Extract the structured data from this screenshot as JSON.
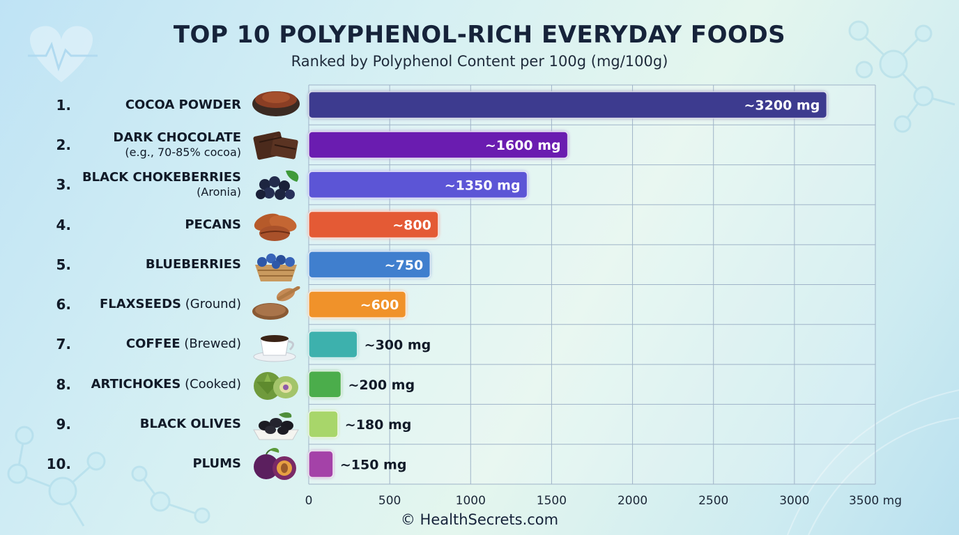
{
  "title": "TOP 10 POLYPHENOL-RICH EVERYDAY FOODS",
  "subtitle": "Ranked by Polyphenol Content per 100g (mg/100g)",
  "footer": "© HealthSecrets.com",
  "rows": [
    {
      "rank": "1.",
      "name": "COCOA POWDER",
      "qualifier": "",
      "sub": "",
      "icon": "cocoa-powder-bowl-icon"
    },
    {
      "rank": "2.",
      "name": "DARK CHOCOLATE",
      "qualifier": "",
      "sub": "(e.g., 70-85% cocoa)",
      "icon": "chocolate-bar-icon"
    },
    {
      "rank": "3.",
      "name": "BLACK CHOKEBERRIES",
      "qualifier": "",
      "sub": "(Aronia)",
      "icon": "chokeberries-icon"
    },
    {
      "rank": "4.",
      "name": "PECANS",
      "qualifier": "",
      "sub": "",
      "icon": "pecans-icon"
    },
    {
      "rank": "5.",
      "name": "BLUEBERRIES",
      "qualifier": "",
      "sub": "",
      "icon": "blueberry-basket-icon"
    },
    {
      "rank": "6.",
      "name": "FLAXSEEDS",
      "qualifier": "(Ground)",
      "sub": "",
      "icon": "flaxseed-spoon-icon"
    },
    {
      "rank": "7.",
      "name": "COFFEE",
      "qualifier": "(Brewed)",
      "sub": "",
      "icon": "coffee-cup-icon"
    },
    {
      "rank": "8.",
      "name": "ARTICHOKES",
      "qualifier": "(Cooked)",
      "sub": "",
      "icon": "artichoke-icon"
    },
    {
      "rank": "9.",
      "name": "BLACK OLIVES",
      "qualifier": "",
      "sub": "",
      "icon": "olive-dish-icon"
    },
    {
      "rank": "10.",
      "name": "PLUMS",
      "qualifier": "",
      "sub": "",
      "icon": "plums-icon"
    }
  ],
  "chart_data": {
    "type": "bar",
    "orientation": "horizontal",
    "categories": [
      "COCOA POWDER",
      "DARK CHOCOLATE",
      "BLACK CHOKEBERRIES",
      "PECANS",
      "BLUEBERRIES",
      "FLAXSEEDS",
      "COFFEE",
      "ARTICHOKES",
      "BLACK OLIVES",
      "PLUMS"
    ],
    "values": [
      3200,
      1600,
      1350,
      800,
      750,
      600,
      300,
      200,
      180,
      150
    ],
    "data_labels": [
      "~3200 mg",
      "~1600 mg",
      "~1350 mg",
      "~800",
      "~750",
      "~600",
      "~300 mg",
      "~200 mg",
      "~180 mg",
      "~150 mg"
    ],
    "colors": [
      "#3d3a8f",
      "#6a1fb0",
      "#5b55d6",
      "#e45a36",
      "#3f7fce",
      "#f0922a",
      "#3cb1ad",
      "#4cad4c",
      "#a8d66a",
      "#a442a8"
    ],
    "x_ticks": [
      0,
      500,
      1000,
      1500,
      2000,
      2500,
      3000,
      3500
    ],
    "x_tick_labels": [
      "0",
      "500",
      "1000",
      "1500",
      "2000",
      "2500",
      "3000",
      "3500 mg"
    ],
    "xlim": [
      0,
      3500
    ],
    "grid": true,
    "legend": "none"
  }
}
